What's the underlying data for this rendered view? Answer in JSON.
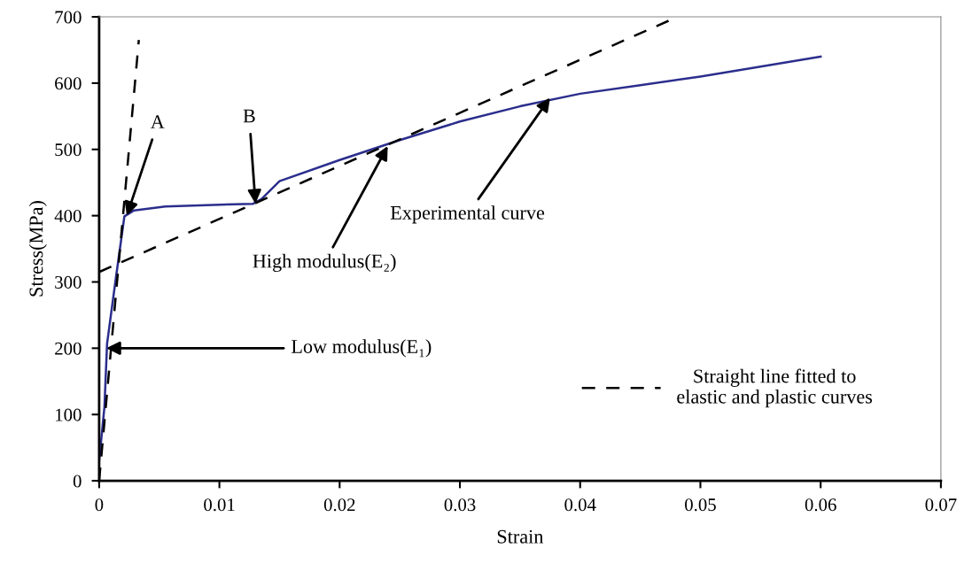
{
  "chart_data": {
    "type": "line",
    "xlabel": "Strain",
    "ylabel": "Stress(MPa)",
    "xlim": [
      0,
      0.07
    ],
    "xticks": [
      0,
      0.01,
      0.02,
      0.03,
      0.04,
      0.05,
      0.06,
      0.07
    ],
    "ylim": [
      0,
      700
    ],
    "yticks": [
      0,
      100,
      200,
      300,
      400,
      500,
      600,
      700
    ],
    "grid": false,
    "legend": "bottom right",
    "marker": "none",
    "series": [
      {
        "color": "#2b2e8c",
        "line_style": "solid",
        "x": [
          0,
          0.00044,
          0.00066,
          0.0014,
          0.0021,
          0.0029,
          0.0055,
          0.0128,
          0.0135,
          0.015,
          0.02,
          0.025,
          0.03,
          0.035,
          0.04,
          0.045,
          0.05,
          0.055,
          0.06
        ],
        "values": [
          30,
          111,
          207,
          307,
          399,
          408,
          414,
          418,
          425,
          452,
          484,
          514,
          542,
          565,
          584,
          597,
          610,
          625,
          640
        ]
      },
      {
        "name": "Straight line fitted to\nelastic and plastic curves",
        "color": "#000000",
        "line_style": "dashed",
        "x": [
          0,
          0.0033
        ],
        "values": [
          0,
          665
        ]
      },
      {
        "color": "#000000",
        "line_style": "dashed",
        "x": [
          0,
          0.0476
        ],
        "values": [
          315,
          696
        ]
      }
    ],
    "annotations": [
      {
        "text": "A",
        "x": 0.0023,
        "y": 400
      },
      {
        "text": "B",
        "x": 0.013,
        "y": 418
      },
      {
        "text": "Low modulus(E₁)",
        "x": 0.0006,
        "y": 200
      },
      {
        "text": "High modulus(E₂)",
        "x": 0.024,
        "y": 505
      },
      {
        "text": "Experimental curve",
        "x": 0.0375,
        "y": 578
      }
    ]
  }
}
